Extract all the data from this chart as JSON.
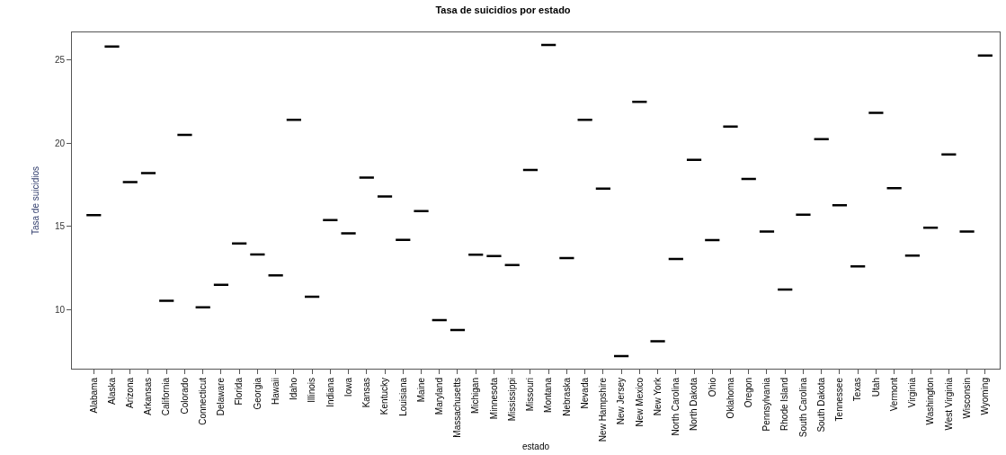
{
  "chart_data": {
    "type": "box",
    "title": "Tasa de suicidios por estado",
    "xlabel": "estado",
    "ylabel": "Tasa de suicidios",
    "categories": [
      "Alabama",
      "Alaska",
      "Arizona",
      "Arkansas",
      "California",
      "Colorado",
      "Connecticut",
      "Delaware",
      "Florida",
      "Georgia",
      "Hawaii",
      "Idaho",
      "Illinois",
      "Indiana",
      "Iowa",
      "Kansas",
      "Kentucky",
      "Louisiana",
      "Maine",
      "Maryland",
      "Massachusetts",
      "Michigan",
      "Minnesota",
      "Mississippi",
      "Missouri",
      "Montana",
      "Nebraska",
      "Nevada",
      "New Hampshire",
      "New Jersey",
      "New Mexico",
      "New York",
      "North Carolina",
      "North Dakota",
      "Ohio",
      "Oklahoma",
      "Oregon",
      "Pennsylvania",
      "Rhode Island",
      "South Carolina",
      "South Dakota",
      "Tennessee",
      "Texas",
      "Utah",
      "Vermont",
      "Virginia",
      "Washington",
      "West Virginia",
      "Wisconsin",
      "Wyoming"
    ],
    "boxes": [
      {
        "low": 15.67,
        "q1": 15.67,
        "median": 15.67,
        "q3": 15.67,
        "high": 15.67
      },
      {
        "low": 25.8,
        "q1": 25.8,
        "median": 25.8,
        "q3": 25.8,
        "high": 25.8
      },
      {
        "low": 17.66,
        "q1": 17.66,
        "median": 17.66,
        "q3": 17.66,
        "high": 17.66
      },
      {
        "low": 18.2,
        "q1": 18.2,
        "median": 18.2,
        "q3": 18.2,
        "high": 18.2
      },
      {
        "low": 10.53,
        "q1": 10.53,
        "median": 10.53,
        "q3": 10.53,
        "high": 10.53
      },
      {
        "low": 20.49,
        "q1": 20.49,
        "median": 20.49,
        "q3": 20.49,
        "high": 20.49
      },
      {
        "low": 10.13,
        "q1": 10.13,
        "median": 10.13,
        "q3": 10.13,
        "high": 10.13
      },
      {
        "low": 11.48,
        "q1": 11.48,
        "median": 11.48,
        "q3": 11.48,
        "high": 11.48
      },
      {
        "low": 13.97,
        "q1": 13.97,
        "median": 13.97,
        "q3": 13.97,
        "high": 13.97
      },
      {
        "low": 13.31,
        "q1": 13.31,
        "median": 13.31,
        "q3": 13.31,
        "high": 13.31
      },
      {
        "low": 12.06,
        "q1": 12.06,
        "median": 12.06,
        "q3": 12.06,
        "high": 12.06
      },
      {
        "low": 21.4,
        "q1": 21.4,
        "median": 21.4,
        "q3": 21.4,
        "high": 21.4
      },
      {
        "low": 10.77,
        "q1": 10.77,
        "median": 10.77,
        "q3": 10.77,
        "high": 10.77
      },
      {
        "low": 15.38,
        "q1": 15.38,
        "median": 15.38,
        "q3": 15.38,
        "high": 15.38
      },
      {
        "low": 14.58,
        "q1": 14.58,
        "median": 14.58,
        "q3": 14.58,
        "high": 14.58
      },
      {
        "low": 17.93,
        "q1": 17.93,
        "median": 17.93,
        "q3": 17.93,
        "high": 17.93
      },
      {
        "low": 16.79,
        "q1": 16.79,
        "median": 16.79,
        "q3": 16.79,
        "high": 16.79
      },
      {
        "low": 14.19,
        "q1": 14.19,
        "median": 14.19,
        "q3": 14.19,
        "high": 14.19
      },
      {
        "low": 15.92,
        "q1": 15.92,
        "median": 15.92,
        "q3": 15.92,
        "high": 15.92
      },
      {
        "low": 9.36,
        "q1": 9.36,
        "median": 9.36,
        "q3": 9.36,
        "high": 9.36
      },
      {
        "low": 8.77,
        "q1": 8.77,
        "median": 8.77,
        "q3": 8.77,
        "high": 8.77
      },
      {
        "low": 13.29,
        "q1": 13.29,
        "median": 13.29,
        "q3": 13.29,
        "high": 13.29
      },
      {
        "low": 13.21,
        "q1": 13.21,
        "median": 13.21,
        "q3": 13.21,
        "high": 13.21
      },
      {
        "low": 12.68,
        "q1": 12.68,
        "median": 12.68,
        "q3": 12.68,
        "high": 12.68
      },
      {
        "low": 18.38,
        "q1": 18.38,
        "median": 18.38,
        "q3": 18.38,
        "high": 18.38
      },
      {
        "low": 25.9,
        "q1": 25.9,
        "median": 25.9,
        "q3": 25.9,
        "high": 25.9
      },
      {
        "low": 13.09,
        "q1": 13.09,
        "median": 13.09,
        "q3": 13.09,
        "high": 13.09
      },
      {
        "low": 21.4,
        "q1": 21.4,
        "median": 21.4,
        "q3": 21.4,
        "high": 21.4
      },
      {
        "low": 17.27,
        "q1": 17.27,
        "median": 17.27,
        "q3": 17.27,
        "high": 17.27
      },
      {
        "low": 7.21,
        "q1": 7.21,
        "median": 7.21,
        "q3": 7.21,
        "high": 7.21
      },
      {
        "low": 22.48,
        "q1": 22.48,
        "median": 22.48,
        "q3": 22.48,
        "high": 22.48
      },
      {
        "low": 8.1,
        "q1": 8.1,
        "median": 8.1,
        "q3": 8.1,
        "high": 8.1
      },
      {
        "low": 13.04,
        "q1": 13.04,
        "median": 13.04,
        "q3": 13.04,
        "high": 13.04
      },
      {
        "low": 18.99,
        "q1": 18.99,
        "median": 18.99,
        "q3": 18.99,
        "high": 18.99
      },
      {
        "low": 14.17,
        "q1": 14.17,
        "median": 14.17,
        "q3": 14.17,
        "high": 14.17
      },
      {
        "low": 20.99,
        "q1": 20.99,
        "median": 20.99,
        "q3": 20.99,
        "high": 20.99
      },
      {
        "low": 17.84,
        "q1": 17.84,
        "median": 17.84,
        "q3": 17.84,
        "high": 17.84
      },
      {
        "low": 14.68,
        "q1": 14.68,
        "median": 14.68,
        "q3": 14.68,
        "high": 14.68
      },
      {
        "low": 11.2,
        "q1": 11.2,
        "median": 11.2,
        "q3": 11.2,
        "high": 11.2
      },
      {
        "low": 15.7,
        "q1": 15.7,
        "median": 15.7,
        "q3": 15.7,
        "high": 15.7
      },
      {
        "low": 20.23,
        "q1": 20.23,
        "median": 20.23,
        "q3": 20.23,
        "high": 20.23
      },
      {
        "low": 16.26,
        "q1": 16.26,
        "median": 16.26,
        "q3": 16.26,
        "high": 16.26
      },
      {
        "low": 12.59,
        "q1": 12.59,
        "median": 12.59,
        "q3": 12.59,
        "high": 12.59
      },
      {
        "low": 21.82,
        "q1": 21.82,
        "median": 21.82,
        "q3": 21.82,
        "high": 21.82
      },
      {
        "low": 17.29,
        "q1": 17.29,
        "median": 17.29,
        "q3": 17.29,
        "high": 17.29
      },
      {
        "low": 13.24,
        "q1": 13.24,
        "median": 13.24,
        "q3": 13.24,
        "high": 13.24
      },
      {
        "low": 14.91,
        "q1": 14.91,
        "median": 14.91,
        "q3": 14.91,
        "high": 14.91
      },
      {
        "low": 19.32,
        "q1": 19.32,
        "median": 19.32,
        "q3": 19.32,
        "high": 19.32
      },
      {
        "low": 14.68,
        "q1": 14.68,
        "median": 14.68,
        "q3": 14.68,
        "high": 14.68
      },
      {
        "low": 25.26,
        "q1": 25.26,
        "median": 25.26,
        "q3": 25.26,
        "high": 25.26
      }
    ],
    "color": "#000000",
    "ylim": [
      6.45,
      26.65
    ],
    "yticks": [
      10,
      15,
      20,
      25
    ]
  }
}
